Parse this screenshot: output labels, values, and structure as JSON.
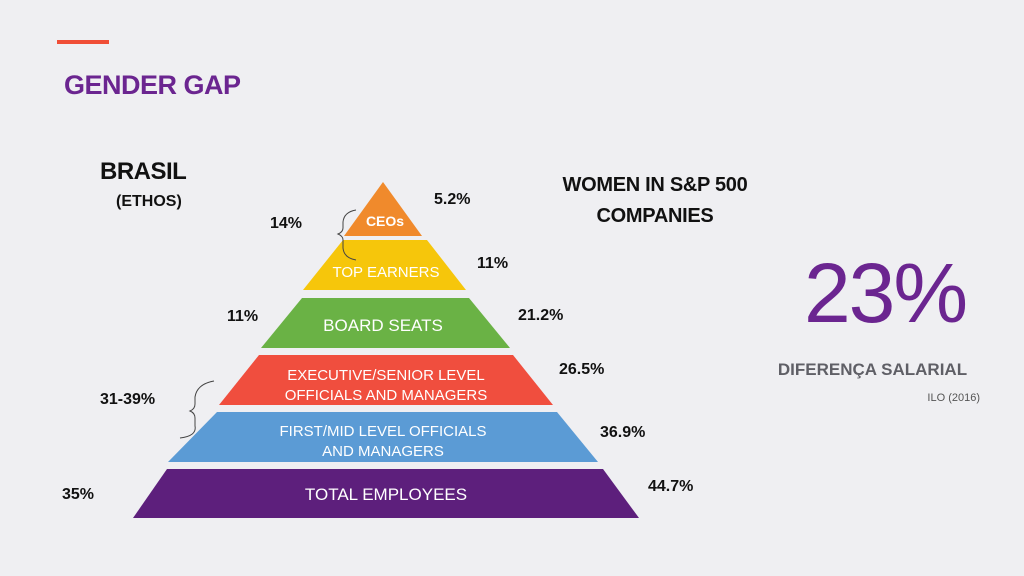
{
  "page": {
    "title": "GENDER GAP",
    "accent_color": "#f04e37",
    "title_color": "#6b2590"
  },
  "brasil": {
    "heading": "BRASIL",
    "source": "(ETHOS)",
    "values": {
      "ceo_top": "14%",
      "board": "11%",
      "exec_mid": "31-39%",
      "total": "35%"
    }
  },
  "sp500": {
    "heading_line1": "WOMEN IN S&P 500",
    "heading_line2": "COMPANIES",
    "values": {
      "ceos": "5.2%",
      "top_earners": "11%",
      "board": "21.2%",
      "exec": "26.5%",
      "mid": "36.9%",
      "total": "44.7%"
    }
  },
  "pyramid": {
    "levels": [
      {
        "id": "ceos",
        "line1": "CEOs",
        "line2": "",
        "color": "#f08a2c",
        "text_color": "#ffffff"
      },
      {
        "id": "top_earners",
        "line1": "TOP EARNERS",
        "line2": "",
        "color": "#f6c60b",
        "text_color": "#ffffff"
      },
      {
        "id": "board",
        "line1": "BOARD SEATS",
        "line2": "",
        "color": "#6ab245",
        "text_color": "#ffffff"
      },
      {
        "id": "exec",
        "line1": "EXECUTIVE/SENIOR LEVEL",
        "line2": "OFFICIALS AND MANAGERS",
        "color": "#f04e3e",
        "text_color": "#ffffff"
      },
      {
        "id": "mid",
        "line1": "FIRST/MID LEVEL OFFICIALS",
        "line2": "AND MANAGERS",
        "color": "#5b9bd5",
        "text_color": "#ffffff"
      },
      {
        "id": "total",
        "line1": "TOTAL EMPLOYEES",
        "line2": "",
        "color": "#5d1f7c",
        "text_color": "#ffffff"
      }
    ]
  },
  "salary_gap": {
    "value": "23%",
    "label": "DIFERENÇA SALARIAL",
    "source": "ILO (2016)"
  }
}
